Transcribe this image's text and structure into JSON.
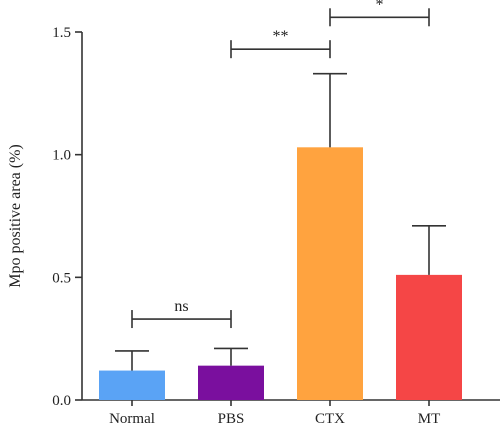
{
  "chart_data": {
    "type": "bar",
    "ylabel": "Mpo positive area (%)",
    "ylim": [
      0,
      1.5
    ],
    "yticks": [
      0.0,
      0.5,
      1.0,
      1.5
    ],
    "ytick_labels": [
      "0.0",
      "0.5",
      "1.0",
      "1.5"
    ],
    "categories": [
      "Normal",
      "PBS",
      "CTX",
      "MT"
    ],
    "values": [
      0.12,
      0.14,
      1.03,
      0.51
    ],
    "errors": [
      0.08,
      0.07,
      0.3,
      0.2
    ],
    "colors": [
      "#5aa3f5",
      "#7a0f9e",
      "#ffa33f",
      "#f54646"
    ],
    "significance": [
      {
        "from": 0,
        "to": 1,
        "label": "ns",
        "y": 0.33
      },
      {
        "from": 1,
        "to": 2,
        "label": "**",
        "y": 1.43
      },
      {
        "from": 2,
        "to": 3,
        "label": "*",
        "y": 1.56
      }
    ]
  }
}
